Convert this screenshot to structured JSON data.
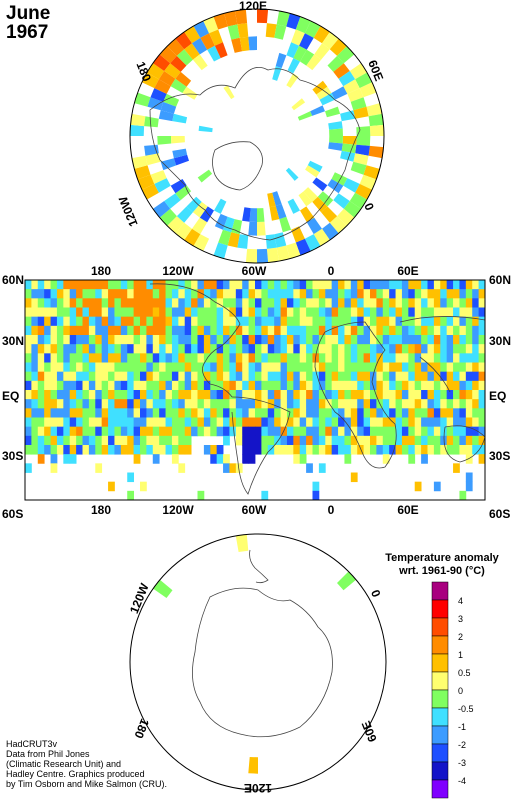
{
  "title": {
    "month": "June",
    "year": "1967"
  },
  "north_map": {
    "labels": {
      "top": "120E",
      "upper_left": "180",
      "upper_right": "60E",
      "lower_left": "120W",
      "lower_right": "0"
    }
  },
  "main_map": {
    "top_longitudes": [
      "180",
      "120W",
      "60W",
      "0",
      "60E"
    ],
    "bottom_longitudes": [
      "180",
      "120W",
      "60W",
      "0",
      "60E"
    ],
    "left_latitudes": [
      "60N",
      "30N",
      "EQ",
      "30S",
      "60S"
    ],
    "right_latitudes": [
      "60N",
      "30N",
      "EQ",
      "30S",
      "60S"
    ]
  },
  "south_map": {
    "labels": {
      "upper_left": "120W",
      "upper_right": "0",
      "lower_left": "180",
      "lower_right": "60E",
      "bottom": "120E"
    }
  },
  "legend": {
    "title_line1": "Temperature anomaly",
    "title_line2": "wrt. 1961-90  (°C)",
    "ticks": [
      "4",
      "3",
      "2",
      "1",
      "0.5",
      "0",
      "-0.5",
      "-1",
      "-2",
      "-3",
      "-4"
    ],
    "colors": [
      "#a8007f",
      "#ff0000",
      "#ff4d00",
      "#ff8c00",
      "#ffc000",
      "#ffff70",
      "#80ff60",
      "#40e0ff",
      "#3c9cff",
      "#1e50ff",
      "#1414c8",
      "#8000ff"
    ]
  },
  "credits": [
    "HadCRUT3v",
    "Data from Phil Jones",
    "(Climatic Research Unit) and",
    "Hadley Centre.  Graphics produced",
    "by Tim Osborn and Mike Salmon (CRU)."
  ]
}
